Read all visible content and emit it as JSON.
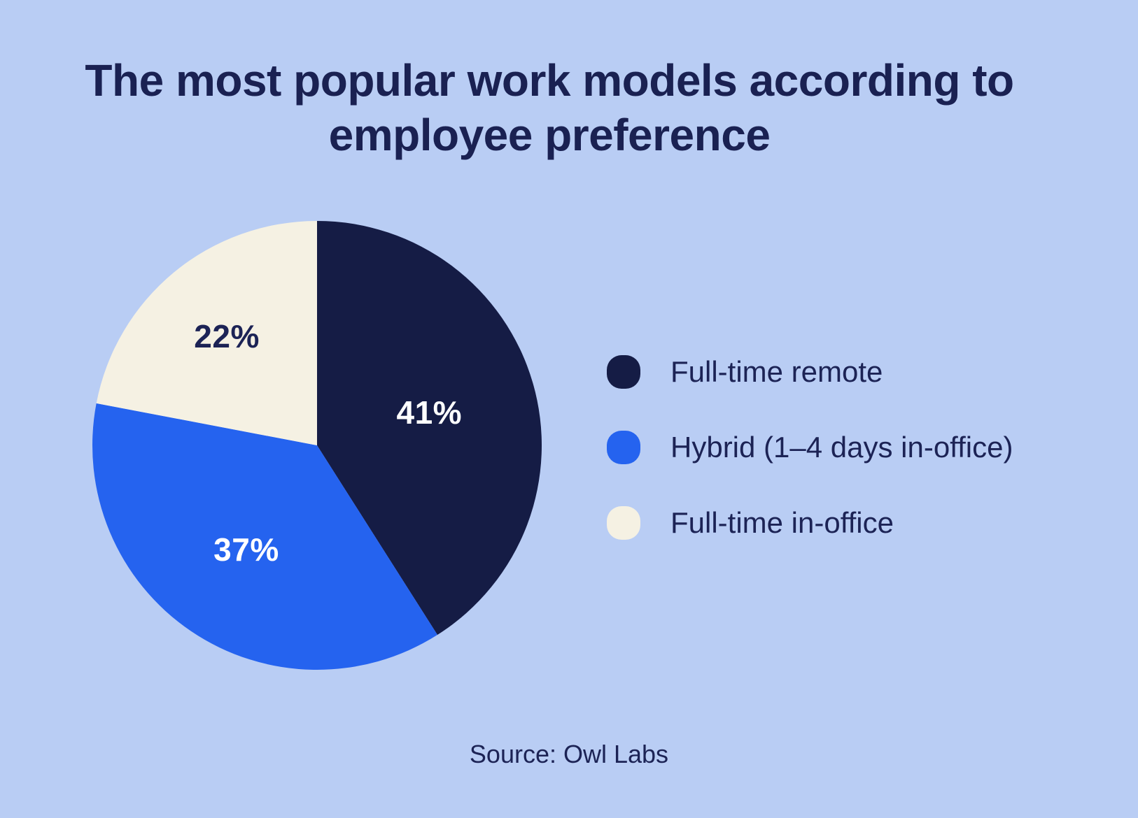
{
  "chart_data": {
    "type": "pie",
    "title": "The most popular work models according to employee preference",
    "source": "Source: Owl Labs",
    "start_angle_deg": 0,
    "direction": "clockwise",
    "legend_position": "right",
    "background_color": "#B9CDF4",
    "slices": [
      {
        "label": "Full-time remote",
        "value": 41,
        "color": "#151C45",
        "label_color": "#FFFFFF",
        "label_radius": 0.52
      },
      {
        "label": "Hybrid (1–4 days in-office)",
        "value": 37,
        "color": "#2563EF",
        "label_color": "#FFFFFF",
        "label_radius": 0.56
      },
      {
        "label": "Full-time in-office",
        "value": 22,
        "color": "#F5F1E3",
        "label_color": "#1C2355",
        "label_radius": 0.63
      }
    ]
  }
}
